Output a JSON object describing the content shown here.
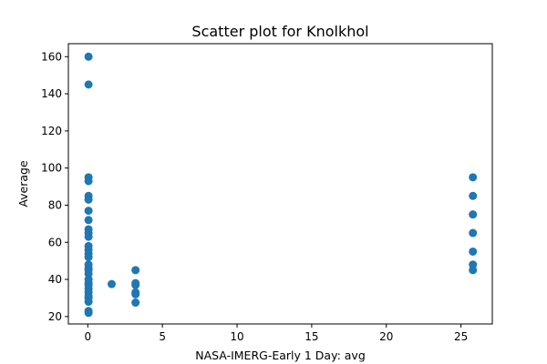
{
  "chart_data": {
    "type": "scatter",
    "title": "Scatter plot for Knolkhol",
    "xlabel": "NASA-IMERG-Early 1 Day: avg",
    "ylabel": "Average",
    "xlim": [
      -1.3,
      27.1
    ],
    "ylim": [
      16,
      167
    ],
    "x_ticks": [
      0,
      5,
      10,
      15,
      20,
      25
    ],
    "y_ticks": [
      20,
      40,
      60,
      80,
      100,
      120,
      140,
      160
    ],
    "grid": false,
    "legend": "none",
    "marker_color": "#1f77b4",
    "series": [
      {
        "points": [
          [
            0.05,
            160
          ],
          [
            0.05,
            145
          ],
          [
            0.05,
            95
          ],
          [
            0.05,
            93
          ],
          [
            0.05,
            85
          ],
          [
            0.05,
            83
          ],
          [
            0.05,
            77
          ],
          [
            0.05,
            72
          ],
          [
            0.05,
            67
          ],
          [
            0.05,
            65
          ],
          [
            0.05,
            63
          ],
          [
            0.05,
            58
          ],
          [
            0.05,
            56
          ],
          [
            0.05,
            54
          ],
          [
            0.05,
            52
          ],
          [
            0.05,
            48
          ],
          [
            0.05,
            46
          ],
          [
            0.05,
            45
          ],
          [
            0.05,
            43
          ],
          [
            0.05,
            40
          ],
          [
            0.05,
            38
          ],
          [
            0.05,
            37
          ],
          [
            0.05,
            35
          ],
          [
            0.05,
            33
          ],
          [
            0.05,
            31
          ],
          [
            0.05,
            30
          ],
          [
            0.05,
            28
          ],
          [
            0.05,
            23
          ],
          [
            0.05,
            22
          ],
          [
            1.6,
            37.5
          ],
          [
            3.2,
            45
          ],
          [
            3.2,
            38
          ],
          [
            3.2,
            37
          ],
          [
            3.2,
            33
          ],
          [
            3.2,
            32
          ],
          [
            3.2,
            27.5
          ],
          [
            25.8,
            95
          ],
          [
            25.8,
            85
          ],
          [
            25.8,
            75
          ],
          [
            25.8,
            65
          ],
          [
            25.8,
            55
          ],
          [
            25.8,
            48
          ],
          [
            25.8,
            45
          ]
        ]
      }
    ]
  }
}
